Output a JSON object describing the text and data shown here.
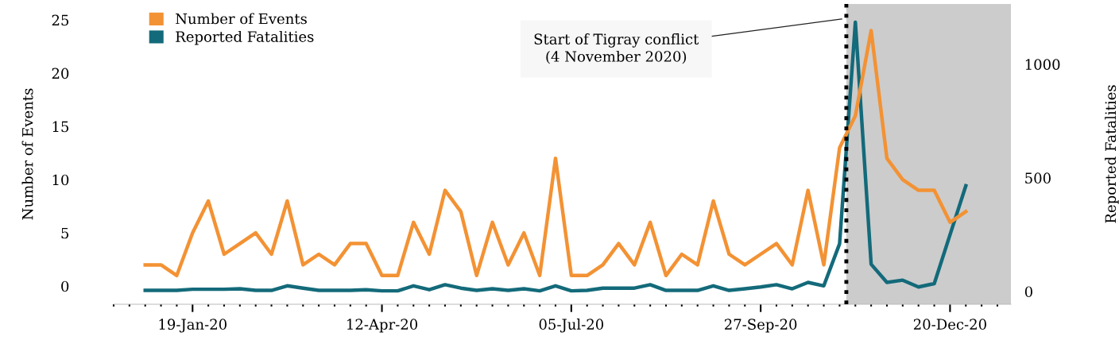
{
  "chart_data": {
    "type": "line",
    "x": [
      "2019-12-29",
      "2020-01-05",
      "2020-01-12",
      "2020-01-19",
      "2020-01-26",
      "2020-02-02",
      "2020-02-09",
      "2020-02-16",
      "2020-02-23",
      "2020-03-01",
      "2020-03-08",
      "2020-03-15",
      "2020-03-22",
      "2020-03-29",
      "2020-04-05",
      "2020-04-12",
      "2020-04-19",
      "2020-04-26",
      "2020-05-03",
      "2020-05-10",
      "2020-05-17",
      "2020-05-24",
      "2020-05-31",
      "2020-06-07",
      "2020-06-14",
      "2020-06-21",
      "2020-06-28",
      "2020-07-05",
      "2020-07-12",
      "2020-07-19",
      "2020-07-26",
      "2020-08-02",
      "2020-08-09",
      "2020-08-16",
      "2020-08-23",
      "2020-08-30",
      "2020-09-06",
      "2020-09-13",
      "2020-09-20",
      "2020-09-27",
      "2020-10-04",
      "2020-10-11",
      "2020-10-18",
      "2020-10-25",
      "2020-11-01",
      "2020-11-08",
      "2020-11-15",
      "2020-11-22",
      "2020-11-29",
      "2020-12-06",
      "2020-12-13",
      "2020-12-20",
      "2020-12-27"
    ],
    "series": [
      {
        "name": "Number of Events",
        "color": "#f39234",
        "values": [
          2,
          2,
          1,
          5,
          8,
          3,
          4,
          5,
          3,
          8,
          2,
          3,
          2,
          4,
          4,
          1,
          1,
          6,
          3,
          9,
          7,
          1,
          6,
          2,
          5,
          1,
          12,
          1,
          1,
          2,
          4,
          2,
          6,
          1,
          3,
          2,
          8,
          3,
          2,
          3,
          4,
          2,
          9,
          2,
          13,
          16,
          24,
          12,
          10,
          9,
          9,
          6,
          7
        ]
      },
      {
        "name": "Reported Fatalities",
        "color": "#136a7a",
        "axis": "y2",
        "values": [
          5,
          5,
          5,
          10,
          10,
          10,
          12,
          5,
          5,
          25,
          15,
          5,
          5,
          5,
          8,
          3,
          3,
          25,
          8,
          30,
          15,
          5,
          12,
          5,
          12,
          3,
          25,
          3,
          5,
          15,
          15,
          15,
          30,
          5,
          5,
          5,
          25,
          5,
          12,
          20,
          30,
          12,
          40,
          25,
          210,
          1185,
          120,
          40,
          50,
          20,
          35,
          250,
          465
        ]
      }
    ],
    "xlim": [
      "2019-12-15",
      "2021-01-16"
    ],
    "xticks": [
      {
        "value": "2019-12-15",
        "label": null
      },
      {
        "value": "2019-12-22",
        "label": null
      },
      {
        "value": "2019-12-29",
        "label": null
      },
      {
        "value": "2020-01-05",
        "label": null
      },
      {
        "value": "2020-01-12",
        "label": null
      },
      {
        "value": "2020-01-19",
        "label": "19-Jan-20"
      },
      {
        "value": "2020-01-26",
        "label": null
      },
      {
        "value": "2020-02-02",
        "label": null
      },
      {
        "value": "2020-02-09",
        "label": null
      },
      {
        "value": "2020-02-16",
        "label": null
      },
      {
        "value": "2020-02-23",
        "label": null
      },
      {
        "value": "2020-03-01",
        "label": null
      },
      {
        "value": "2020-03-08",
        "label": null
      },
      {
        "value": "2020-03-15",
        "label": null
      },
      {
        "value": "2020-03-22",
        "label": null
      },
      {
        "value": "2020-03-29",
        "label": null
      },
      {
        "value": "2020-04-05",
        "label": null
      },
      {
        "value": "2020-04-12",
        "label": "12-Apr-20"
      },
      {
        "value": "2020-04-19",
        "label": null
      },
      {
        "value": "2020-04-26",
        "label": null
      },
      {
        "value": "2020-05-03",
        "label": null
      },
      {
        "value": "2020-05-10",
        "label": null
      },
      {
        "value": "2020-05-17",
        "label": null
      },
      {
        "value": "2020-05-24",
        "label": null
      },
      {
        "value": "2020-05-31",
        "label": null
      },
      {
        "value": "2020-06-07",
        "label": null
      },
      {
        "value": "2020-06-14",
        "label": null
      },
      {
        "value": "2020-06-21",
        "label": null
      },
      {
        "value": "2020-06-28",
        "label": null
      },
      {
        "value": "2020-07-05",
        "label": "05-Jul-20"
      },
      {
        "value": "2020-07-12",
        "label": null
      },
      {
        "value": "2020-07-19",
        "label": null
      },
      {
        "value": "2020-07-26",
        "label": null
      },
      {
        "value": "2020-08-02",
        "label": null
      },
      {
        "value": "2020-08-09",
        "label": null
      },
      {
        "value": "2020-08-16",
        "label": null
      },
      {
        "value": "2020-08-23",
        "label": null
      },
      {
        "value": "2020-08-30",
        "label": null
      },
      {
        "value": "2020-09-06",
        "label": null
      },
      {
        "value": "2020-09-13",
        "label": null
      },
      {
        "value": "2020-09-20",
        "label": null
      },
      {
        "value": "2020-09-27",
        "label": "27-Sep-20"
      },
      {
        "value": "2020-10-04",
        "label": null
      },
      {
        "value": "2020-10-11",
        "label": null
      },
      {
        "value": "2020-10-18",
        "label": null
      },
      {
        "value": "2020-10-25",
        "label": null
      },
      {
        "value": "2020-11-01",
        "label": null
      },
      {
        "value": "2020-11-08",
        "label": null
      },
      {
        "value": "2020-11-15",
        "label": null
      },
      {
        "value": "2020-11-22",
        "label": null
      },
      {
        "value": "2020-11-29",
        "label": null
      },
      {
        "value": "2020-12-06",
        "label": null
      },
      {
        "value": "2020-12-13",
        "label": null
      },
      {
        "value": "2020-12-20",
        "label": "20-Dec-20"
      },
      {
        "value": "2020-12-27",
        "label": null
      },
      {
        "value": "2021-01-03",
        "label": null
      },
      {
        "value": "2021-01-10",
        "label": null
      }
    ],
    "ylim": [
      -1.7,
      26.5
    ],
    "yticks": [
      0,
      5,
      10,
      15,
      20,
      25
    ],
    "y2lim": [
      -56,
      1265
    ],
    "y2ticks": [
      0,
      500,
      1000
    ],
    "ylabel": "Number of Events",
    "y2label": "Reported Fatalities",
    "ref_lines": [
      {
        "axis": "x",
        "value": "2020-11-04",
        "label": "Start of Tigray conflict\n(4 November 2020)",
        "color": "#000000",
        "line_style": "dotted"
      }
    ],
    "bands": [
      {
        "axis": "x",
        "from": "2020-11-04",
        "to": "2021-01-16",
        "label": null,
        "color": "#cccccc"
      }
    ],
    "legend": "top left",
    "grid": false,
    "marker": "none",
    "line_style": "solid"
  }
}
